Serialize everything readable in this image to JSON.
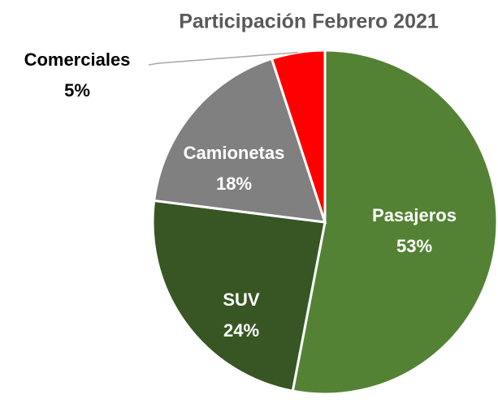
{
  "chart_data": {
    "type": "pie",
    "title": "Participación Febrero 2021",
    "categories": [
      "Pasajeros",
      "SUV",
      "Camionetas",
      "Comerciales"
    ],
    "values": [
      53,
      24,
      18,
      5
    ],
    "value_labels": [
      "53%",
      "24%",
      "18%",
      "5%"
    ],
    "colors": [
      "#548235",
      "#375623",
      "#808080",
      "#ff0000"
    ]
  }
}
